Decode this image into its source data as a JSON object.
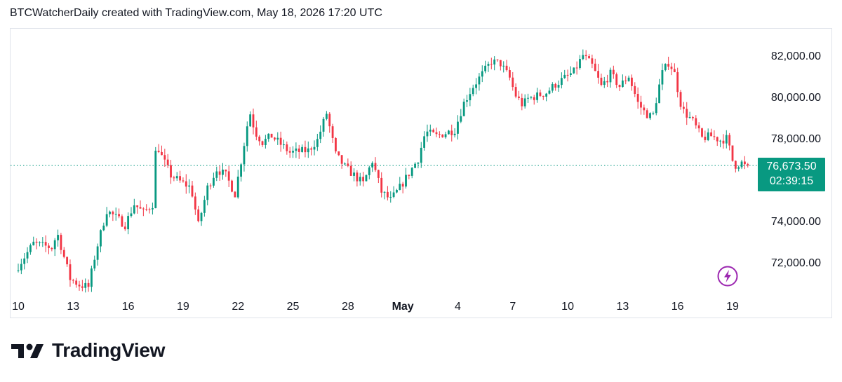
{
  "header": {
    "text": "BTCWatcherDaily created with TradingView.com, May 18, 2026 17:20 UTC"
  },
  "logo": {
    "text": "TradingView"
  },
  "last_price": {
    "price": "76,673.50",
    "countdown": "02:39:15"
  },
  "colors": {
    "up": "#089981",
    "down": "#f23645",
    "grid": "#e0e3eb",
    "text": "#131722",
    "bolt": "#9c27b0"
  },
  "icons": {
    "bolt": "lightning-bolt-icon"
  },
  "chart_data": {
    "type": "candlestick",
    "interval": "4h",
    "y_ticks": [
      "82,000.00",
      "80,000.00",
      "78,000.00",
      "74,000.00",
      "72,000.00"
    ],
    "y_tick_values": [
      82000,
      80000,
      78000,
      74000,
      72000
    ],
    "x_ticks": [
      "10",
      "13",
      "16",
      "19",
      "22",
      "25",
      "28",
      "May",
      "4",
      "7",
      "10",
      "13",
      "16",
      "19"
    ],
    "x_tick_days": [
      0,
      3,
      6,
      9,
      12,
      15,
      18,
      21,
      24,
      27,
      30,
      33,
      36,
      39
    ],
    "ylim": [
      70800,
      82900
    ],
    "last_price": 76673.5,
    "daily_path": [
      [
        0,
        71600
      ],
      [
        1,
        72900
      ],
      [
        2,
        72700
      ],
      [
        2.3,
        73400
      ],
      [
        3,
        71200
      ],
      [
        3.5,
        70900
      ],
      [
        4,
        70800
      ],
      [
        4.4,
        72500
      ],
      [
        5,
        74500
      ],
      [
        5.6,
        74100
      ],
      [
        6,
        73800
      ],
      [
        6.5,
        74800
      ],
      [
        7,
        74400
      ],
      [
        7.5,
        74800
      ],
      [
        7.7,
        77800
      ],
      [
        8,
        77100
      ],
      [
        8.5,
        76200
      ],
      [
        9,
        75900
      ],
      [
        9.6,
        75600
      ],
      [
        10,
        73800
      ],
      [
        10.5,
        75600
      ],
      [
        11,
        76500
      ],
      [
        11.5,
        76200
      ],
      [
        12,
        75300
      ],
      [
        12.4,
        77200
      ],
      [
        12.8,
        79300
      ],
      [
        13.1,
        78300
      ],
      [
        13.5,
        77800
      ],
      [
        14,
        78100
      ],
      [
        15,
        77300
      ],
      [
        16,
        77400
      ],
      [
        16.5,
        77900
      ],
      [
        17,
        79200
      ],
      [
        17.5,
        77200
      ],
      [
        18,
        76600
      ],
      [
        19,
        75800
      ],
      [
        19.5,
        76900
      ],
      [
        20,
        75400
      ],
      [
        20.5,
        75000
      ],
      [
        21,
        75600
      ],
      [
        21.5,
        76300
      ],
      [
        22,
        77000
      ],
      [
        22.4,
        78300
      ],
      [
        23,
        78100
      ],
      [
        24,
        78400
      ],
      [
        24.5,
        79700
      ],
      [
        25,
        80500
      ],
      [
        25.5,
        81100
      ],
      [
        26,
        81700
      ],
      [
        26.5,
        81600
      ],
      [
        27,
        80900
      ],
      [
        27.3,
        80100
      ],
      [
        27.7,
        79600
      ],
      [
        28,
        79900
      ],
      [
        29,
        80200
      ],
      [
        29.5,
        80600
      ],
      [
        30,
        80900
      ],
      [
        30.5,
        81200
      ],
      [
        31,
        82000
      ],
      [
        31.5,
        81500
      ],
      [
        32,
        80500
      ],
      [
        32.5,
        81100
      ],
      [
        33,
        80500
      ],
      [
        33.5,
        81000
      ],
      [
        34,
        79700
      ],
      [
        34.4,
        79200
      ],
      [
        34.8,
        79000
      ],
      [
        35.3,
        81100
      ],
      [
        35.7,
        81700
      ],
      [
        36,
        81100
      ],
      [
        36.4,
        79400
      ],
      [
        37,
        78800
      ],
      [
        37.5,
        78000
      ],
      [
        38,
        78100
      ],
      [
        38.5,
        77900
      ],
      [
        38.9,
        78000
      ],
      [
        39.1,
        77000
      ],
      [
        39.4,
        76600
      ],
      [
        39.6,
        76900
      ],
      [
        39.8,
        76600
      ],
      [
        39.85,
        76673.5
      ]
    ]
  }
}
